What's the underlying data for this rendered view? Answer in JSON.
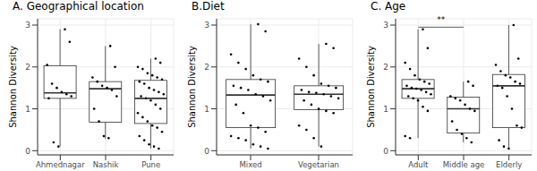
{
  "chart_data": [
    {
      "type": "box",
      "title": "A. Geographical location",
      "y_label": "Shannon Diversity",
      "categories": [
        "Ahmednagar",
        "Nashik",
        "Pune"
      ],
      "ylim": [
        -0.1,
        3.15
      ],
      "yticks": [
        0,
        1,
        2,
        3
      ],
      "grid": true,
      "color": "#000000",
      "stats": [
        {
          "min": 0.1,
          "q1": 1.25,
          "median": 1.38,
          "q3": 2.03,
          "max": 2.9,
          "points": [
            2.9,
            2.6,
            2.05,
            1.6,
            1.5,
            1.4,
            1.35,
            1.3,
            1.25,
            0.2,
            0.1
          ]
        },
        {
          "min": 0.28,
          "q1": 0.68,
          "median": 1.48,
          "q3": 1.65,
          "max": 2.5,
          "points": [
            2.5,
            2.0,
            1.75,
            1.65,
            1.55,
            1.5,
            1.45,
            1.3,
            1.0,
            0.7,
            0.35,
            0.3
          ]
        },
        {
          "min": 0.05,
          "q1": 0.65,
          "median": 1.25,
          "q3": 1.68,
          "max": 2.2,
          "points": [
            2.2,
            2.1,
            2.0,
            1.95,
            1.85,
            1.8,
            1.75,
            1.7,
            1.65,
            1.6,
            1.5,
            1.45,
            1.4,
            1.35,
            1.3,
            1.25,
            1.2,
            1.1,
            1.0,
            0.9,
            0.8,
            0.7,
            0.6,
            0.55,
            0.45,
            0.35,
            0.25,
            0.15,
            0.1,
            0.05
          ]
        }
      ]
    },
    {
      "type": "box",
      "title": "B.Diet",
      "y_label": "Shannon Diversity",
      "categories": [
        "Mixed",
        "Vegetarian"
      ],
      "ylim": [
        -0.1,
        3.15
      ],
      "yticks": [
        0,
        1,
        2,
        3
      ],
      "grid": true,
      "color": "#000000",
      "stats": [
        {
          "min": 0.05,
          "q1": 0.55,
          "median": 1.33,
          "q3": 1.7,
          "max": 3.02,
          "points": [
            3.02,
            2.85,
            2.3,
            2.1,
            1.95,
            1.8,
            1.7,
            1.65,
            1.55,
            1.5,
            1.45,
            1.35,
            1.3,
            1.2,
            1.1,
            0.9,
            0.6,
            0.55,
            0.45,
            0.35,
            0.3,
            0.25,
            0.15,
            0.1,
            0.05
          ]
        },
        {
          "min": 0.1,
          "q1": 0.98,
          "median": 1.35,
          "q3": 1.55,
          "max": 2.55,
          "points": [
            2.55,
            2.45,
            2.2,
            2.0,
            1.8,
            1.6,
            1.55,
            1.5,
            1.45,
            1.4,
            1.38,
            1.35,
            1.3,
            1.25,
            1.2,
            1.1,
            1.0,
            0.95,
            0.9,
            0.6,
            0.5,
            0.3,
            0.1
          ]
        }
      ]
    },
    {
      "type": "box",
      "title": "C. Age",
      "y_label": "Shannon Diversity",
      "categories": [
        "Adult",
        "Middle age",
        "Elderly"
      ],
      "ylim": [
        -0.1,
        3.15
      ],
      "yticks": [
        0,
        1,
        2,
        3
      ],
      "grid": true,
      "color": "#000000",
      "stats": [
        {
          "min": 0.3,
          "q1": 1.25,
          "median": 1.48,
          "q3": 1.7,
          "max": 2.9,
          "points": [
            2.9,
            2.45,
            2.1,
            1.95,
            1.8,
            1.7,
            1.65,
            1.6,
            1.55,
            1.5,
            1.48,
            1.45,
            1.4,
            1.35,
            1.3,
            1.25,
            1.2,
            1.05,
            0.95,
            0.35,
            0.3
          ]
        },
        {
          "min": 0.2,
          "q1": 0.42,
          "median": 1.0,
          "q3": 1.28,
          "max": 1.65,
          "points": [
            1.65,
            1.55,
            1.3,
            1.25,
            1.2,
            1.1,
            1.0,
            0.95,
            0.7,
            0.5,
            0.4,
            0.3,
            0.2
          ]
        },
        {
          "min": 0.05,
          "q1": 0.55,
          "median": 1.55,
          "q3": 1.82,
          "max": 3.0,
          "points": [
            3.0,
            2.2,
            2.05,
            1.9,
            1.8,
            1.75,
            1.65,
            1.6,
            1.55,
            1.5,
            1.3,
            1.0,
            0.6,
            0.55,
            0.25,
            0.1,
            0.05
          ]
        }
      ],
      "annotations": [
        {
          "text": "**",
          "from": "Adult",
          "to": "Middle age",
          "y": 2.95
        }
      ]
    }
  ]
}
